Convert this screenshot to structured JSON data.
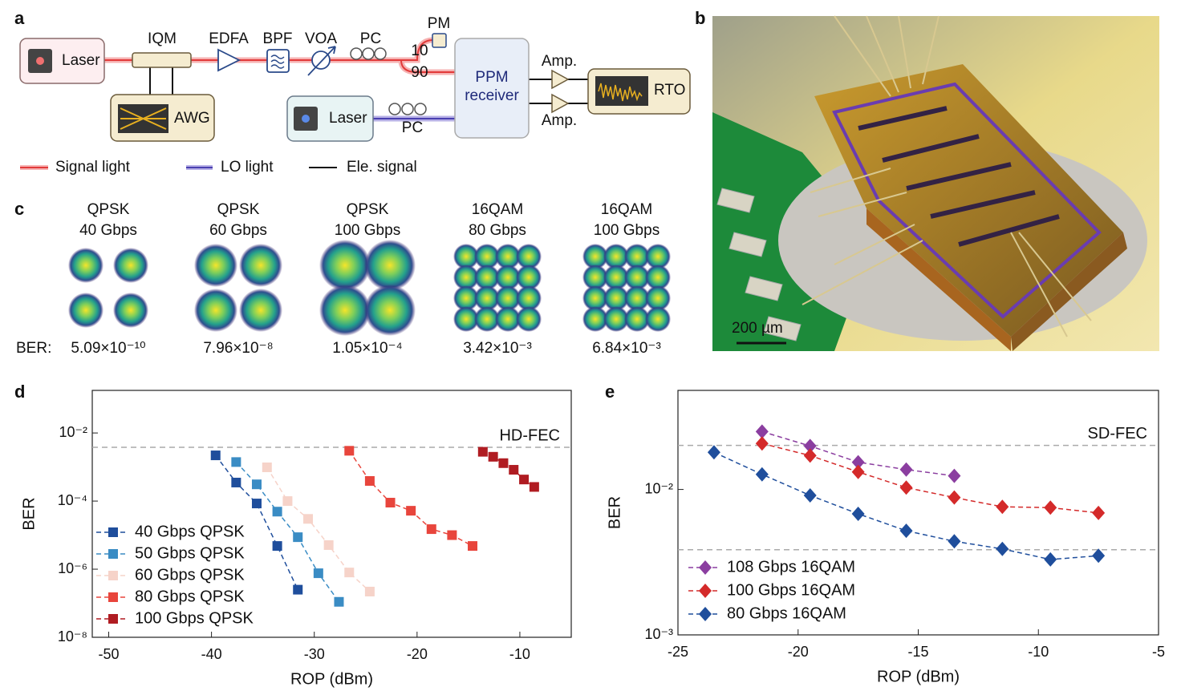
{
  "panel_labels": [
    "a",
    "b",
    "c",
    "d",
    "e"
  ],
  "diagram": {
    "laser_signal": "Laser",
    "iqm": "IQM",
    "awg": "AWG",
    "edfa": "EDFA",
    "bpf": "BPF",
    "voa": "VOA",
    "pc_signal": "PC",
    "pm": "PM",
    "split_10": "10",
    "split_90": "90",
    "receiver": [
      "PPM",
      "receiver"
    ],
    "laser_lo": "Laser",
    "pc_lo": "PC",
    "amp_top": "Amp.",
    "amp_bottom": "Amp.",
    "rto": "RTO",
    "legend": [
      "Signal light",
      "LO light",
      "Ele. signal"
    ]
  },
  "photo": {
    "scale_bar": "200 µm"
  },
  "constellations": {
    "ber_label": "BER:",
    "items": [
      {
        "format": "QPSK",
        "rate": "40 Gbps",
        "ber": "5.09×10⁻¹⁰"
      },
      {
        "format": "QPSK",
        "rate": "60 Gbps",
        "ber": "7.96×10⁻⁸"
      },
      {
        "format": "QPSK",
        "rate": "100 Gbps",
        "ber": "1.05×10⁻⁴"
      },
      {
        "format": "16QAM",
        "rate": "80 Gbps",
        "ber": "3.42×10⁻³"
      },
      {
        "format": "16QAM",
        "rate": "100 Gbps",
        "ber": "6.84×10⁻³"
      }
    ]
  },
  "chart_data": [
    {
      "type": "line",
      "x_label": "ROP (dBm)",
      "y_label": "BER",
      "log_y": true,
      "marker": "square",
      "dashed": true,
      "legend": "lower left",
      "xlim": [
        -51.6,
        -5
      ],
      "xticks": [
        -50,
        -40,
        -30,
        -20,
        -10
      ],
      "ylim": [
        1e-08,
        0.178
      ],
      "yticks": [
        {
          "value": 1e-08,
          "label": "10⁻⁸"
        },
        {
          "value": 1e-06,
          "label": "10⁻⁶"
        },
        {
          "value": 0.0001,
          "label": "10⁻⁴"
        },
        {
          "value": 0.01,
          "label": "10⁻²"
        }
      ],
      "reference_lines": [
        {
          "value": 0.0038,
          "label": "HD-FEC"
        }
      ],
      "series": [
        {
          "name": "40 Gbps QPSK",
          "color": "#1f4e9c",
          "x": [
            -39.6,
            -37.6,
            -35.6,
            -33.6,
            -31.6
          ],
          "values": [
            0.0022,
            0.00035,
            8.5e-05,
            4.8e-06,
            2.5e-07
          ]
        },
        {
          "name": "50 Gbps QPSK",
          "color": "#3a8cc4",
          "x": [
            -37.6,
            -35.6,
            -33.6,
            -31.6,
            -29.6,
            -27.6
          ],
          "values": [
            0.0014,
            0.00031,
            4.9e-05,
            8.7e-06,
            7.6e-07,
            1.1e-07
          ]
        },
        {
          "name": "60 Gbps QPSK",
          "color": "#f6d3c9",
          "x": [
            -34.6,
            -32.6,
            -30.6,
            -28.6,
            -26.6,
            -24.6
          ],
          "values": [
            0.00098,
            0.0001,
            3e-05,
            5.1e-06,
            8e-07,
            2.2e-07
          ]
        },
        {
          "name": "80 Gbps QPSK",
          "color": "#e8453c",
          "x": [
            -26.6,
            -24.6,
            -22.6,
            -20.6,
            -18.6,
            -16.6,
            -14.6
          ],
          "values": [
            0.003,
            0.00039,
            9e-05,
            5.2e-05,
            1.5e-05,
            1e-05,
            4.8e-06
          ]
        },
        {
          "name": "100 Gbps QPSK",
          "color": "#b01c22",
          "x": [
            -13.6,
            -12.6,
            -11.6,
            -10.6,
            -9.6,
            -8.6
          ],
          "values": [
            0.0028,
            0.002,
            0.0013,
            0.00083,
            0.00043,
            0.00026
          ]
        }
      ]
    },
    {
      "type": "line",
      "x_label": "ROP (dBm)",
      "y_label": "BER",
      "log_y": true,
      "marker": "diamond",
      "dashed": true,
      "legend": "lower left",
      "xlim": [
        -25,
        -5
      ],
      "xticks": [
        -25,
        -20,
        -15,
        -10,
        -5
      ],
      "ylim": [
        0.001,
        0.048
      ],
      "yticks": [
        {
          "value": 0.001,
          "label": "10⁻³"
        },
        {
          "value": 0.01,
          "label": "10⁻²"
        }
      ],
      "reference_lines": [
        {
          "value": 0.0201,
          "label": "SD-FEC"
        },
        {
          "value": 0.00385
        }
      ],
      "series": [
        {
          "name": "108 Gbps 16QAM",
          "color": "#8b3ea0",
          "x": [
            -21.5,
            -19.5,
            -17.5,
            -15.5,
            -13.5
          ],
          "values": [
            0.025,
            0.0199,
            0.0154,
            0.0137,
            0.0124
          ]
        },
        {
          "name": "100 Gbps 16QAM",
          "color": "#d42a2a",
          "x": [
            -21.5,
            -19.5,
            -17.5,
            -15.5,
            -13.5,
            -11.5,
            -9.5,
            -7.5
          ],
          "values": [
            0.0207,
            0.0171,
            0.0132,
            0.0103,
            0.0088,
            0.0076,
            0.0075,
            0.0069
          ]
        },
        {
          "name": "80 Gbps 16QAM",
          "color": "#1f4e9c",
          "x": [
            -23.5,
            -21.5,
            -19.5,
            -17.5,
            -15.5,
            -13.5,
            -11.5,
            -9.5,
            -7.5
          ],
          "values": [
            0.018,
            0.0127,
            0.0091,
            0.0068,
            0.0052,
            0.0044,
            0.0039,
            0.0033,
            0.0035
          ]
        }
      ]
    }
  ]
}
